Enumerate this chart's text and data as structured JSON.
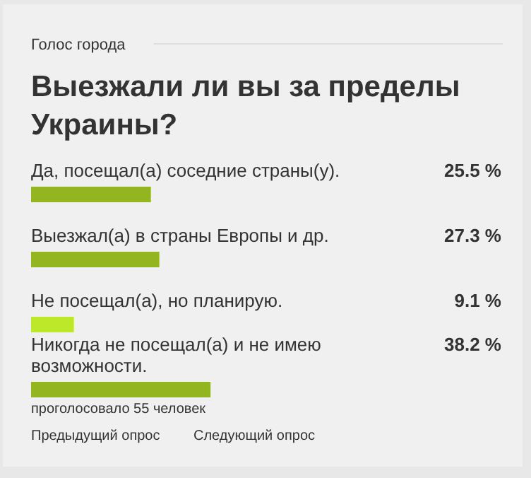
{
  "chart_data": {
    "type": "bar",
    "orientation": "horizontal",
    "title": "Выезжали ли вы за пределы Украины?",
    "categories": [
      "Да, посещал(а) соседние страны(у).",
      "Выезжал(а) в страны Европы и др.",
      "Не посещал(а), но планирую.",
      "Никогда не посещал(а) и не имею возможности."
    ],
    "values": [
      25.5,
      27.3,
      9.1,
      38.2
    ],
    "colors": [
      "#92b520",
      "#92b520",
      "#bde82a",
      "#92b520"
    ],
    "value_labels": [
      "25.5 %",
      "27.3 %",
      "9.1 %",
      "38.2 %"
    ],
    "annotations": [
      "Голос города",
      "проголосовало 55 человек",
      "Предыдущий опрос",
      "Следующий опрос"
    ]
  }
}
